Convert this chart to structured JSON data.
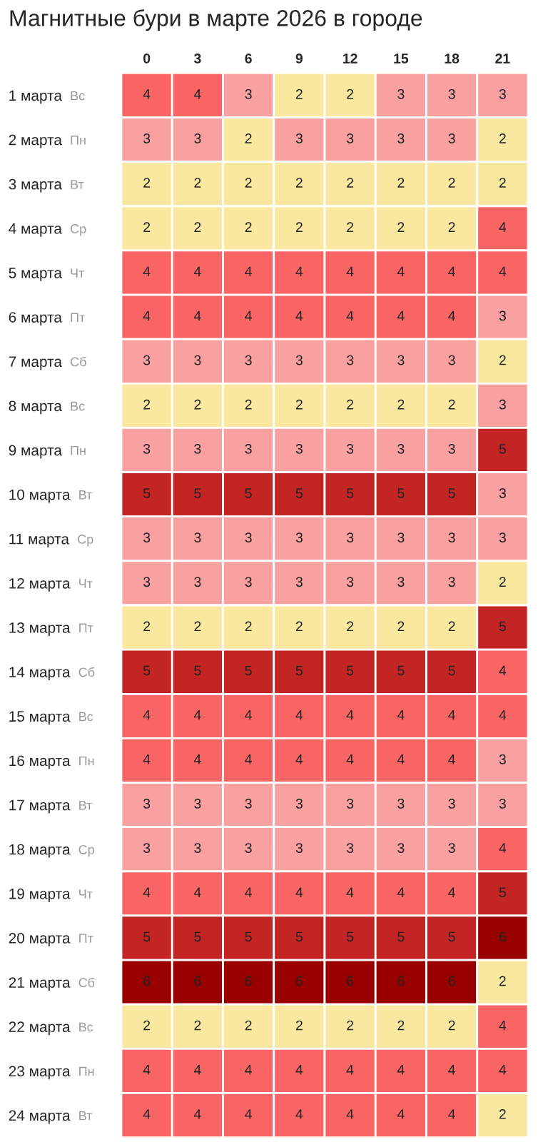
{
  "chart_data": {
    "type": "heatmap",
    "title": "Магнитные бури в марте 2026 в городе",
    "categories": [
      "0",
      "3",
      "6",
      "9",
      "12",
      "15",
      "18",
      "21"
    ],
    "y_categories": [
      "1 марта",
      "2 марта",
      "3 марта",
      "4 марта",
      "5 марта",
      "6 марта",
      "7 марта",
      "8 марта",
      "9 марта",
      "10 марта",
      "11 марта",
      "12 марта",
      "13 марта",
      "14 марта",
      "15 марта",
      "16 марта",
      "17 марта",
      "18 марта",
      "19 марта",
      "20 марта",
      "21 марта",
      "22 марта",
      "23 марта",
      "24 марта"
    ],
    "y2_categories": [
      "Вс",
      "Пн",
      "Вт",
      "Ср",
      "Чт",
      "Пт",
      "Сб",
      "Вс",
      "Пн",
      "Вт",
      "Ср",
      "Чт",
      "Пт",
      "Сб",
      "Вс",
      "Пн",
      "Вт",
      "Ср",
      "Чт",
      "Пт",
      "Сб",
      "Вс",
      "Пн",
      "Вт"
    ],
    "cells": [
      [
        4,
        4,
        3,
        2,
        2,
        3,
        3,
        3
      ],
      [
        3,
        3,
        2,
        3,
        3,
        3,
        3,
        2
      ],
      [
        2,
        2,
        2,
        2,
        2,
        2,
        2,
        2
      ],
      [
        2,
        2,
        2,
        2,
        2,
        2,
        2,
        4
      ],
      [
        4,
        4,
        4,
        4,
        4,
        4,
        4,
        4
      ],
      [
        4,
        4,
        4,
        4,
        4,
        4,
        4,
        3
      ],
      [
        3,
        3,
        3,
        3,
        3,
        3,
        3,
        2
      ],
      [
        2,
        2,
        2,
        2,
        2,
        2,
        2,
        3
      ],
      [
        3,
        3,
        3,
        3,
        3,
        3,
        3,
        5
      ],
      [
        5,
        5,
        5,
        5,
        5,
        5,
        5,
        3
      ],
      [
        3,
        3,
        3,
        3,
        3,
        3,
        3,
        3
      ],
      [
        3,
        3,
        3,
        3,
        3,
        3,
        3,
        2
      ],
      [
        2,
        2,
        2,
        2,
        2,
        2,
        2,
        5
      ],
      [
        5,
        5,
        5,
        5,
        5,
        5,
        5,
        4
      ],
      [
        4,
        4,
        4,
        4,
        4,
        4,
        4,
        4
      ],
      [
        4,
        4,
        4,
        4,
        4,
        4,
        4,
        3
      ],
      [
        3,
        3,
        3,
        3,
        3,
        3,
        3,
        3
      ],
      [
        3,
        3,
        3,
        3,
        3,
        3,
        3,
        4
      ],
      [
        4,
        4,
        4,
        4,
        4,
        4,
        4,
        5
      ],
      [
        5,
        5,
        5,
        5,
        5,
        5,
        5,
        6
      ],
      [
        6,
        6,
        6,
        6,
        6,
        6,
        6,
        2
      ],
      [
        2,
        2,
        2,
        2,
        2,
        2,
        2,
        4
      ],
      [
        4,
        4,
        4,
        4,
        4,
        4,
        4,
        4
      ],
      [
        4,
        4,
        4,
        4,
        4,
        4,
        4,
        2
      ]
    ],
    "data_labels": true
  }
}
